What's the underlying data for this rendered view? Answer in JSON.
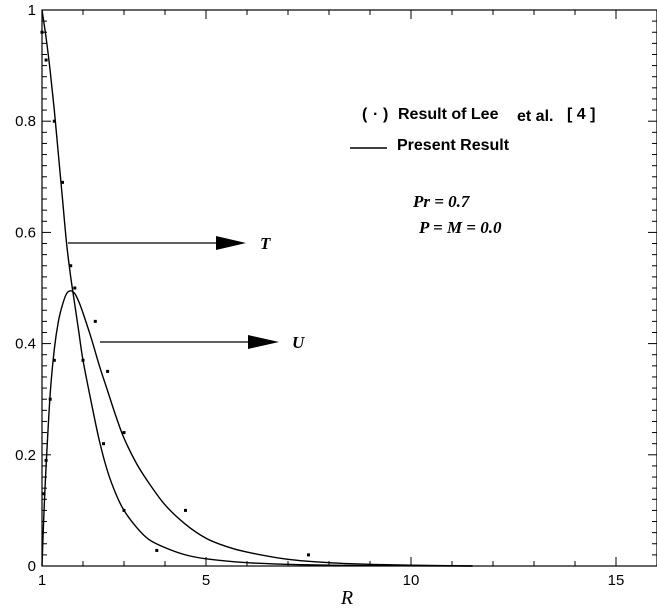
{
  "chart_data": {
    "type": "line",
    "xlabel": "R",
    "ylabel": "",
    "xlim": [
      1,
      16
    ],
    "ylim": [
      0,
      1
    ],
    "x_ticks": [
      1,
      5,
      10,
      15
    ],
    "y_ticks": [
      0,
      0.2,
      0.4,
      0.6,
      0.8,
      1
    ],
    "x_tick_labels": [
      "1",
      "5",
      "10",
      "15"
    ],
    "y_tick_labels": [
      "0",
      "0.2",
      "0.4",
      "0.6",
      "0.8",
      "1"
    ],
    "grid": false,
    "series": [
      {
        "name": "T",
        "style": "line",
        "x": [
          1.0,
          1.1,
          1.2,
          1.3,
          1.4,
          1.5,
          1.6,
          1.7,
          1.8,
          1.9,
          2.0,
          2.2,
          2.4,
          2.6,
          2.8,
          3.0,
          3.3,
          3.6,
          4.0,
          4.5,
          5.0,
          6.0,
          7.0,
          8.0,
          9.0,
          10.0,
          11.5
        ],
        "y": [
          1.0,
          0.95,
          0.89,
          0.82,
          0.74,
          0.66,
          0.58,
          0.52,
          0.47,
          0.42,
          0.37,
          0.295,
          0.225,
          0.17,
          0.13,
          0.1,
          0.07,
          0.048,
          0.033,
          0.02,
          0.013,
          0.006,
          0.003,
          0.0015,
          0.0008,
          0.0004,
          0.0
        ]
      },
      {
        "name": "U",
        "style": "line",
        "x": [
          1.0,
          1.05,
          1.1,
          1.2,
          1.3,
          1.4,
          1.5,
          1.6,
          1.7,
          1.8,
          1.9,
          2.0,
          2.2,
          2.4,
          2.6,
          2.8,
          3.0,
          3.3,
          3.6,
          4.0,
          4.5,
          5.0,
          5.5,
          6.0,
          7.0,
          8.0,
          9.0,
          10.0,
          11.5
        ],
        "y": [
          0.0,
          0.1,
          0.18,
          0.31,
          0.39,
          0.44,
          0.47,
          0.49,
          0.495,
          0.49,
          0.475,
          0.455,
          0.41,
          0.36,
          0.315,
          0.27,
          0.23,
          0.185,
          0.15,
          0.11,
          0.075,
          0.05,
          0.035,
          0.025,
          0.012,
          0.006,
          0.003,
          0.0015,
          0.0
        ]
      },
      {
        "name": "Lee et al. (T)",
        "style": "points",
        "x": [
          1.0,
          1.1,
          1.3,
          1.5,
          1.7,
          2.0,
          2.5,
          3.0,
          3.8
        ],
        "y": [
          0.96,
          0.91,
          0.8,
          0.69,
          0.54,
          0.37,
          0.22,
          0.1,
          0.028
        ]
      },
      {
        "name": "Lee et al. (U)",
        "style": "points",
        "x": [
          1.05,
          1.1,
          1.2,
          1.3,
          1.8,
          2.3,
          2.6,
          3.0,
          4.5,
          7.5
        ],
        "y": [
          0.13,
          0.19,
          0.3,
          0.37,
          0.5,
          0.44,
          0.35,
          0.24,
          0.1,
          0.02
        ]
      }
    ],
    "annotations": {
      "legend_points": "Result of Lee",
      "legend_points_paren": "(",
      "legend_points_dot": "·",
      "legend_points_paren_close": ")",
      "legend_points_etal": "et al.",
      "legend_points_ref": "[ 4 ]",
      "legend_line": "Present Result",
      "params_line1": "Pr = 0.7",
      "params_line2": "P = M =  0.0",
      "label_T": "T",
      "label_U": "U"
    },
    "legend_placement": "upper-right"
  }
}
